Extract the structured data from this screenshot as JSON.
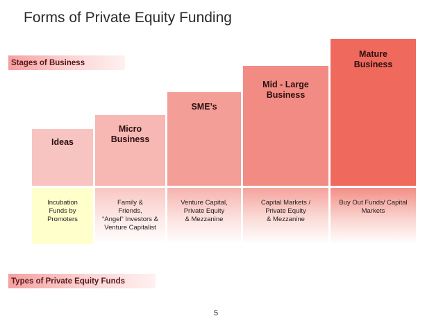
{
  "title": "Forms of Private Equity Funding",
  "labels": {
    "stages": "Stages of Business",
    "funds": "Types of Private Equity Funds"
  },
  "stages": [
    {
      "label": "Ideas"
    },
    {
      "label": "Micro\nBusiness"
    },
    {
      "label": "SME’s"
    },
    {
      "label": "Mid - Large\nBusiness"
    },
    {
      "label": "Mature\nBusiness"
    }
  ],
  "funds": [
    {
      "label": "Incubation\nFunds by\nPromoters"
    },
    {
      "label": "Family &\nFriends,\n“Angel” Investors &\nVenture Capitalist"
    },
    {
      "label": "Venture Capital,\nPrivate Equity\n& Mezzanine"
    },
    {
      "label": "Capital Markets /\nPrivate Equity\n& Mezzanine"
    },
    {
      "label": "Buy Out Funds/ Capital\nMarkets"
    }
  ],
  "page_number": "5",
  "colors": {
    "ideas": "#f7c4c2",
    "micro": "#f7b7b3",
    "sme": "#f49e98",
    "mid": "#f28b83",
    "mature": "#f0695d",
    "incubation_fund": "#ffffcc"
  }
}
